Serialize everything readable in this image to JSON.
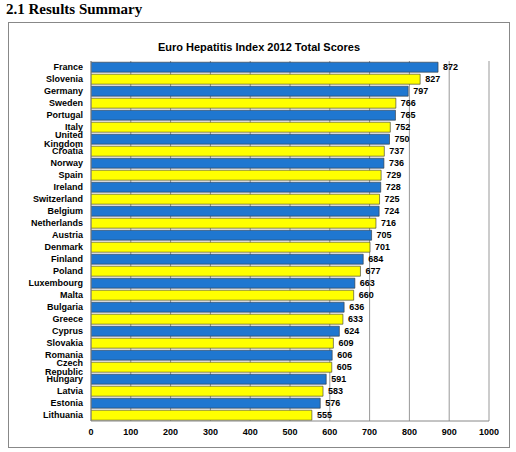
{
  "header": {
    "title": "2.1 Results Summary"
  },
  "chart_data": {
    "type": "bar",
    "title": "Euro Hepatitis Index 2012 Total Scores",
    "orientation": "horizontal",
    "categories": [
      "France",
      "Slovenia",
      "Germany",
      "Sweden",
      "Portugal",
      "Italy",
      "United Kingdom",
      "Croatia",
      "Norway",
      "Spain",
      "Ireland",
      "Switzerland",
      "Belgium",
      "Netherlands",
      "Austria",
      "Denmark",
      "Finland",
      "Poland",
      "Luxembourg",
      "Malta",
      "Bulgaria",
      "Greece",
      "Cyprus",
      "Slovakia",
      "Romania",
      "Czech Republic",
      "Hungary",
      "Latvia",
      "Estonia",
      "Lithuania"
    ],
    "values": [
      872,
      827,
      797,
      766,
      765,
      752,
      750,
      737,
      736,
      729,
      728,
      725,
      724,
      716,
      705,
      701,
      684,
      677,
      663,
      660,
      636,
      633,
      624,
      609,
      606,
      605,
      591,
      583,
      576,
      555
    ],
    "colors": [
      "#1f77d0",
      "#ffff00",
      "#1f77d0",
      "#ffff00",
      "#1f77d0",
      "#ffff00",
      "#1f77d0",
      "#ffff00",
      "#1f77d0",
      "#ffff00",
      "#1f77d0",
      "#ffff00",
      "#1f77d0",
      "#ffff00",
      "#1f77d0",
      "#ffff00",
      "#1f77d0",
      "#ffff00",
      "#1f77d0",
      "#ffff00",
      "#1f77d0",
      "#ffff00",
      "#1f77d0",
      "#ffff00",
      "#1f77d0",
      "#ffff00",
      "#1f77d0",
      "#ffff00",
      "#1f77d0",
      "#ffff00"
    ],
    "xlim": [
      0,
      1000
    ],
    "xticks": [
      0,
      100,
      200,
      300,
      400,
      500,
      600,
      700,
      800,
      900,
      1000
    ],
    "grid": true,
    "data_labels": true
  }
}
